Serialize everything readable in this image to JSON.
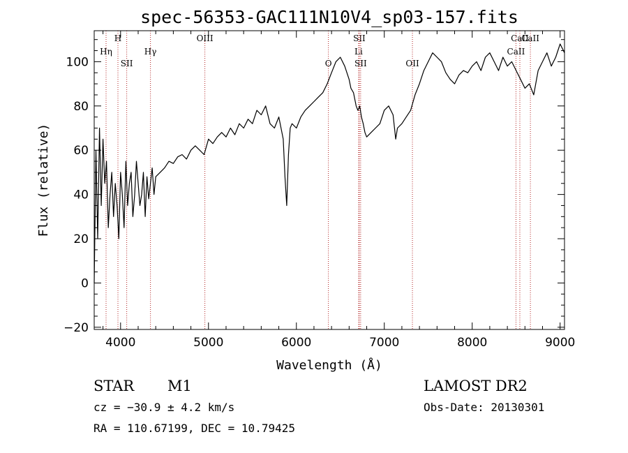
{
  "chart_data": {
    "type": "line",
    "title": "spec-56353-GAC111N10V4_sp03-157.fits",
    "xlabel": "Wavelength (Å)",
    "ylabel": "Flux (relative)",
    "xlim": [
      3700,
      9050
    ],
    "ylim": [
      -21,
      114
    ],
    "xticks": [
      4000,
      5000,
      6000,
      7000,
      8000,
      9000
    ],
    "yticks": [
      -20,
      0,
      20,
      40,
      60,
      80,
      100
    ],
    "grid": false,
    "series": [
      {
        "color": "#000000",
        "x": [
          3700,
          3720,
          3740,
          3760,
          3780,
          3800,
          3820,
          3840,
          3860,
          3880,
          3900,
          3920,
          3940,
          3960,
          3980,
          4000,
          4020,
          4040,
          4060,
          4080,
          4100,
          4120,
          4140,
          4160,
          4180,
          4200,
          4220,
          4240,
          4260,
          4280,
          4300,
          4320,
          4340,
          4360,
          4380,
          4400,
          4450,
          4500,
          4550,
          4600,
          4650,
          4700,
          4750,
          4800,
          4850,
          4900,
          4950,
          5000,
          5050,
          5100,
          5150,
          5200,
          5250,
          5300,
          5350,
          5400,
          5450,
          5500,
          5550,
          5600,
          5650,
          5700,
          5750,
          5800,
          5850,
          5870,
          5890,
          5910,
          5930,
          5950,
          6000,
          6050,
          6100,
          6150,
          6200,
          6250,
          6300,
          6350,
          6400,
          6450,
          6500,
          6550,
          6600,
          6620,
          6650,
          6680,
          6700,
          6720,
          6740,
          6760,
          6780,
          6800,
          6850,
          6900,
          6950,
          7000,
          7050,
          7100,
          7130,
          7150,
          7200,
          7250,
          7300,
          7350,
          7400,
          7450,
          7500,
          7550,
          7600,
          7650,
          7700,
          7750,
          7800,
          7850,
          7900,
          7950,
          8000,
          8050,
          8100,
          8150,
          8200,
          8250,
          8300,
          8350,
          8400,
          8450,
          8500,
          8550,
          8600,
          8650,
          8700,
          8750,
          8800,
          8850,
          8900,
          8950,
          9000,
          9050
        ],
        "y": [
          0,
          60,
          20,
          70,
          35,
          65,
          45,
          55,
          25,
          40,
          50,
          30,
          45,
          35,
          20,
          50,
          40,
          25,
          55,
          35,
          45,
          50,
          30,
          40,
          55,
          45,
          35,
          40,
          50,
          30,
          48,
          38,
          45,
          52,
          40,
          48,
          50,
          52,
          55,
          54,
          57,
          58,
          56,
          60,
          62,
          60,
          58,
          65,
          63,
          66,
          68,
          66,
          70,
          67,
          72,
          70,
          74,
          72,
          78,
          76,
          80,
          72,
          70,
          75,
          65,
          48,
          35,
          58,
          70,
          72,
          70,
          75,
          78,
          80,
          82,
          84,
          86,
          90,
          95,
          100,
          102,
          98,
          92,
          88,
          86,
          80,
          78,
          80,
          75,
          72,
          68,
          66,
          68,
          70,
          72,
          78,
          80,
          76,
          65,
          70,
          72,
          75,
          78,
          85,
          90,
          96,
          100,
          104,
          102,
          100,
          95,
          92,
          90,
          94,
          96,
          95,
          98,
          100,
          96,
          102,
          104,
          100,
          96,
          102,
          98,
          100,
          96,
          92,
          88,
          90,
          85,
          96,
          100,
          104,
          98,
          102,
          108,
          104
        ]
      }
    ],
    "line_markers": [
      {
        "label": "Hη",
        "x": 3835,
        "row": 1
      },
      {
        "label": "H",
        "x": 3970,
        "row": 0
      },
      {
        "label": "SII",
        "x": 4070,
        "row": 2
      },
      {
        "label": "Hγ",
        "x": 4340,
        "row": 1
      },
      {
        "label": "OIII",
        "x": 4959,
        "row": 0
      },
      {
        "label": "O",
        "x": 6364,
        "row": 2
      },
      {
        "label": "SII",
        "x": 6716,
        "row": 0
      },
      {
        "label": "Li",
        "x": 6708,
        "row": 1
      },
      {
        "label": "SII",
        "x": 6731,
        "row": 2
      },
      {
        "label": "OII",
        "x": 7320,
        "row": 2
      },
      {
        "label": "CaII",
        "x": 8542,
        "row": 0
      },
      {
        "label": "CaII",
        "x": 8498,
        "row": 1
      },
      {
        "label": "CaII",
        "x": 8662,
        "row": 0
      }
    ]
  },
  "info": {
    "object_class": "STAR",
    "subclass": "M1",
    "survey": "LAMOST DR2",
    "cz": "cz = −30.9 ± 4.2 km/s",
    "obs_date": "Obs-Date: 20130301",
    "coords": "RA = 110.67199, DEC =  10.79425"
  }
}
